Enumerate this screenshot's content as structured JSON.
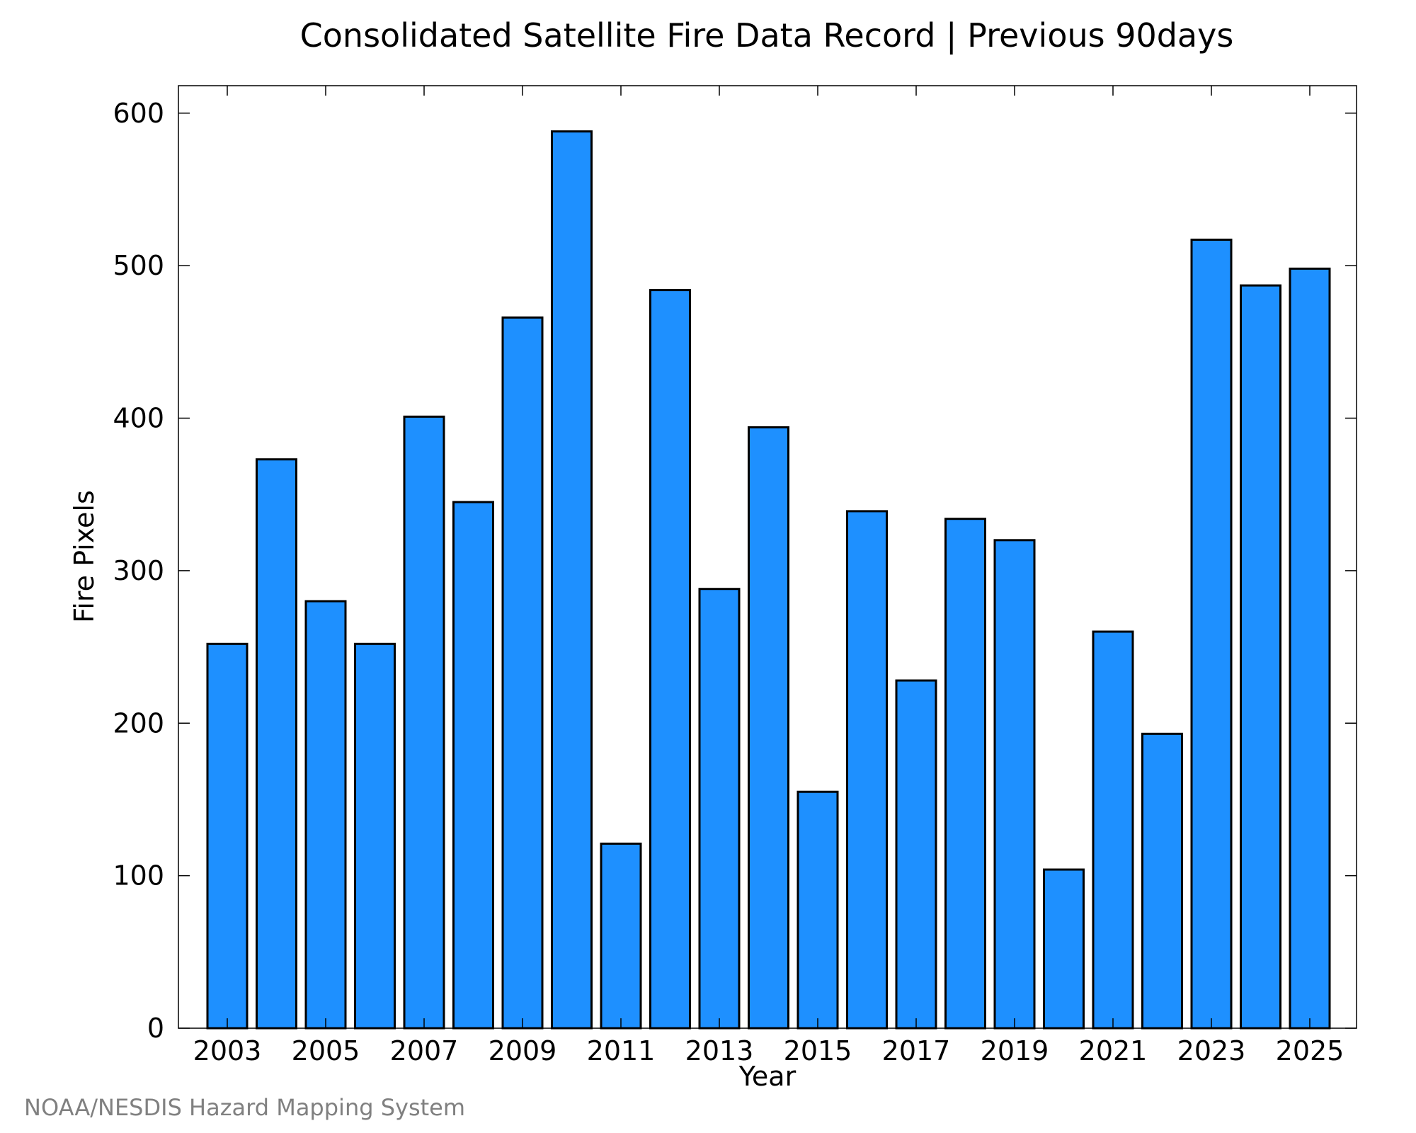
{
  "chart_data": {
    "type": "bar",
    "title": "Consolidated Satellite Fire Data Record | Previous 90days",
    "xlabel": "Year",
    "ylabel": "Fire Pixels",
    "categories": [
      2003,
      2004,
      2005,
      2006,
      2007,
      2008,
      2009,
      2010,
      2011,
      2012,
      2013,
      2014,
      2015,
      2016,
      2017,
      2018,
      2019,
      2020,
      2021,
      2022,
      2023,
      2024,
      2025
    ],
    "values": [
      252,
      373,
      280,
      252,
      401,
      345,
      466,
      588,
      121,
      484,
      288,
      394,
      155,
      339,
      228,
      334,
      320,
      104,
      260,
      193,
      517,
      487,
      498
    ],
    "x_tick_labels": [
      "2003",
      "2005",
      "2007",
      "2009",
      "2011",
      "2013",
      "2015",
      "2017",
      "2019",
      "2021",
      "2023",
      "2025"
    ],
    "y_tick_labels": [
      "0",
      "100",
      "200",
      "300",
      "400",
      "500",
      "600"
    ],
    "y_ticks": [
      0,
      100,
      200,
      300,
      400,
      500,
      600
    ],
    "ylim": [
      0,
      618
    ],
    "grid": false,
    "legend": "none",
    "bar_color": "#1e90ff",
    "bar_edge_color": "#000000"
  },
  "credit": "NOAA/NESDIS Hazard Mapping System"
}
